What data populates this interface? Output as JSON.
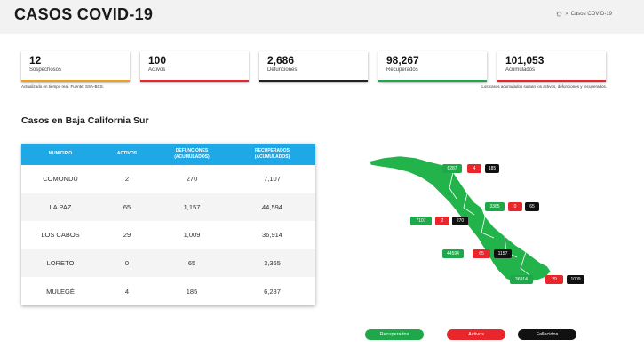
{
  "header": {
    "title": "CASOS COVID-19",
    "breadcrumb_sep": ">",
    "breadcrumb_current": "Casos COVID-19"
  },
  "stats": [
    {
      "value": "12",
      "label": "Sospechosos",
      "color": "#f0a020"
    },
    {
      "value": "100",
      "label": "Activos",
      "color": "#e8262b"
    },
    {
      "value": "2,686",
      "label": "Defunciones",
      "color": "#222222"
    },
    {
      "value": "98,267",
      "label": "Recuperados",
      "color": "#1ea84a"
    },
    {
      "value": "101,053",
      "label": "Acumulados",
      "color": "#e8262b"
    }
  ],
  "notes": {
    "left": "Actualizado en tiempo real. Fuente: SSA-BCS.",
    "right": "Los casos acumulados suman los activos, defunciones y recuperados."
  },
  "section_title": "Casos en Baja California Sur",
  "table": {
    "headers": [
      "MUNICIPIO",
      "ACTIVOS",
      "DEFUNCIONES\n(ACUMULADOS)",
      "RECUPERADOS\n(ACUMULADOS)"
    ],
    "rows": [
      [
        "COMONDÚ",
        "2",
        "270",
        "7,107"
      ],
      [
        "LA PAZ",
        "65",
        "1,157",
        "44,594"
      ],
      [
        "LOS CABOS",
        "29",
        "1,009",
        "36,914"
      ],
      [
        "LORETO",
        "0",
        "65",
        "3,365"
      ],
      [
        "MULEGÉ",
        "4",
        "185",
        "6,287"
      ]
    ]
  },
  "map": {
    "land_color": "#22b34a",
    "groups": [
      {
        "recuperados": "6287",
        "activos": "4",
        "fallecidos": "185"
      },
      {
        "recuperados": "3365",
        "activos": "0",
        "fallecidos": "65"
      },
      {
        "recuperados": "7107",
        "activos": "2",
        "fallecidos": "270"
      },
      {
        "recuperados": "44594",
        "activos": "65",
        "fallecidos": "1157"
      },
      {
        "recuperados": "36914",
        "activos": "29",
        "fallecidos": "1009"
      }
    ]
  },
  "legend": {
    "recuperados": "Recuperados",
    "activos": "Activos",
    "fallecidos": "Fallecidos"
  },
  "colors": {
    "table_header": "#1fa8e6",
    "recuperados": "#1ea84a",
    "activos": "#e8262b",
    "fallecidos": "#111111"
  }
}
